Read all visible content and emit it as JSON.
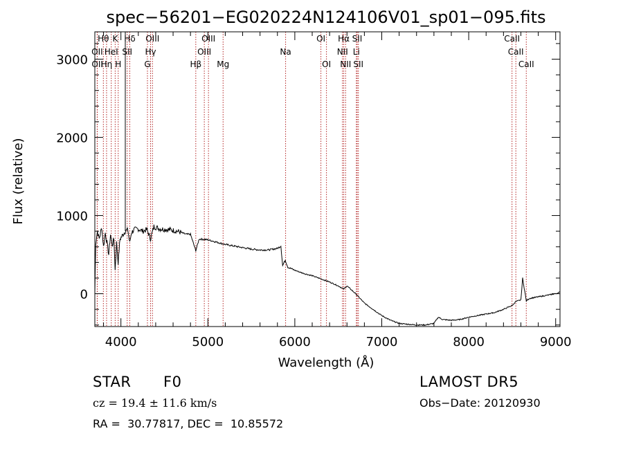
{
  "chart_data": {
    "type": "line",
    "title": "spec−56201−EG020224N124106V01_sp01−095.fits",
    "xlabel": "Wavelength (Å)",
    "ylabel": "Flux (relative)",
    "xlim": [
      3700,
      9050
    ],
    "ylim": [
      -420,
      3350
    ],
    "xticks": [
      4000,
      5000,
      6000,
      7000,
      8000,
      9000
    ],
    "yticks": [
      0,
      1000,
      2000,
      3000
    ],
    "xtick_labels": [
      "4000",
      "5000",
      "6000",
      "7000",
      "8000",
      "9000"
    ],
    "ytick_labels": [
      "0",
      "1000",
      "2000",
      "3000"
    ],
    "line_color": "#000000",
    "marker_color": "#b22222",
    "series": [
      {
        "x": [
          3700,
          3710,
          3730,
          3750,
          3780,
          3800,
          3820,
          3840,
          3860,
          3880,
          3900,
          3920,
          3933,
          3950,
          3968,
          3990,
          4020,
          4050,
          4080,
          4101,
          4120,
          4150,
          4200,
          4250,
          4300,
          4340,
          4380,
          4450,
          4550,
          4650,
          4750,
          4800,
          4861,
          4900,
          5000,
          5100,
          5200,
          5300,
          5400,
          5500,
          5600,
          5700,
          5800,
          5840,
          5860,
          5890,
          5920,
          6000,
          6100,
          6200,
          6300,
          6400,
          6500,
          6563,
          6600,
          6700,
          6800,
          6900,
          7000,
          7100,
          7200,
          7300,
          7400,
          7500,
          7600,
          7650,
          7700,
          7800,
          7900,
          8000,
          8100,
          8200,
          8300,
          8400,
          8500,
          8542,
          8600,
          8620,
          8662,
          8700,
          8800,
          8900,
          9000,
          9050
        ],
        "y": [
          0,
          650,
          800,
          700,
          850,
          600,
          780,
          650,
          500,
          760,
          620,
          700,
          300,
          650,
          400,
          700,
          750,
          800,
          820,
          650,
          780,
          820,
          830,
          800,
          820,
          700,
          860,
          830,
          820,
          800,
          760,
          760,
          550,
          700,
          690,
          660,
          630,
          610,
          590,
          570,
          560,
          560,
          580,
          610,
          360,
          430,
          340,
          300,
          260,
          230,
          190,
          150,
          100,
          60,
          100,
          0,
          -120,
          -200,
          -280,
          -340,
          -380,
          -390,
          -400,
          -400,
          -380,
          -300,
          -330,
          -340,
          -330,
          -300,
          -280,
          -260,
          -240,
          -200,
          -150,
          -100,
          -80,
          200,
          -90,
          -60,
          -40,
          -20,
          0,
          20
        ]
      }
    ],
    "lines": [
      {
        "label": "Hθ",
        "x": 3798,
        "row": 0
      },
      {
        "label": "OII",
        "x": 3727,
        "row": 1
      },
      {
        "label": "OII",
        "x": 3729,
        "row": 2
      },
      {
        "label": "Hη",
        "x": 3835,
        "row": 2
      },
      {
        "label": "HeI",
        "x": 3889,
        "row": 1
      },
      {
        "label": "K",
        "x": 3934,
        "row": 0
      },
      {
        "label": "H",
        "x": 3969,
        "row": 2
      },
      {
        "label": "SII",
        "x": 4072,
        "row": 1
      },
      {
        "label": "Hδ",
        "x": 4102,
        "row": 0
      },
      {
        "label": "G",
        "x": 4305,
        "row": 2
      },
      {
        "label": "OIII",
        "x": 4363,
        "row": 0
      },
      {
        "label": "Hγ",
        "x": 4341,
        "row": 1
      },
      {
        "label": "Hβ",
        "x": 4861,
        "row": 2
      },
      {
        "label": "OIII",
        "x": 4959,
        "row": 1
      },
      {
        "label": "OIII",
        "x": 5007,
        "row": 0
      },
      {
        "label": "Mg",
        "x": 5175,
        "row": 2
      },
      {
        "label": "Na",
        "x": 5894,
        "row": 1
      },
      {
        "label": "OI",
        "x": 6300,
        "row": 0
      },
      {
        "label": "OI",
        "x": 6364,
        "row": 2
      },
      {
        "label": "NII",
        "x": 6548,
        "row": 1
      },
      {
        "label": "NII",
        "x": 6584,
        "row": 2
      },
      {
        "label": "Hα",
        "x": 6563,
        "row": 0
      },
      {
        "label": "Li",
        "x": 6708,
        "row": 1
      },
      {
        "label": "SII",
        "x": 6717,
        "row": 0
      },
      {
        "label": "SII",
        "x": 6731,
        "row": 2
      },
      {
        "label": "CaII",
        "x": 8498,
        "row": 0
      },
      {
        "label": "CaII",
        "x": 8542,
        "row": 1
      },
      {
        "label": "CaII",
        "x": 8662,
        "row": 2
      }
    ]
  },
  "info": {
    "class_label": "STAR",
    "subclass": "F0",
    "cz": "cz = 19.4 ± 11.6 km/s",
    "coords": "RA =  30.77817, DEC =  10.85572",
    "survey": "LAMOST DR5",
    "obs_date": "Obs−Date: 20120930"
  }
}
